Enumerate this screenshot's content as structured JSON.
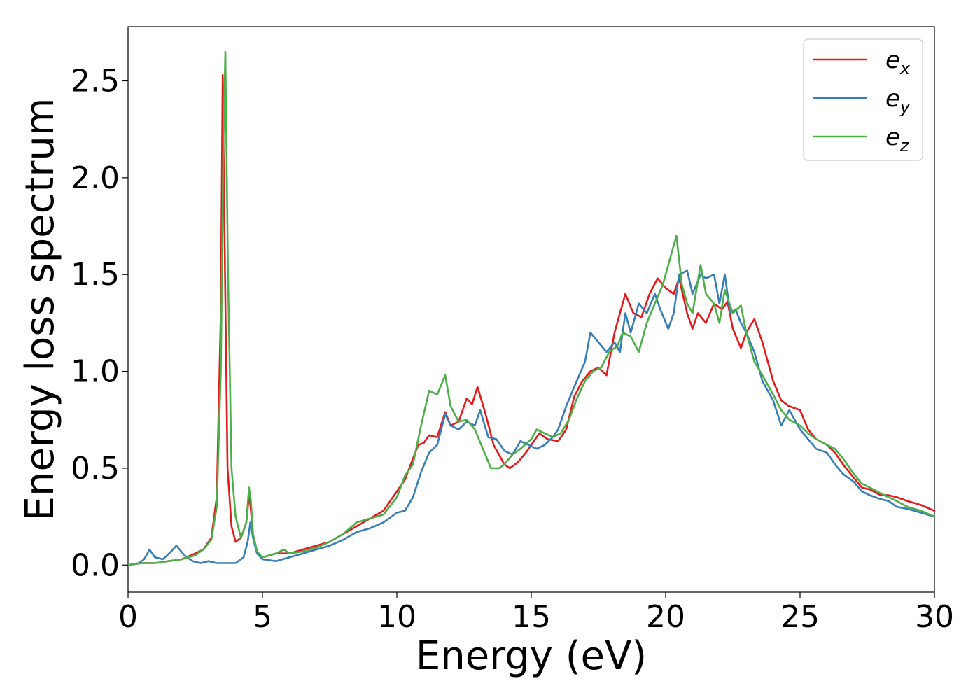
{
  "chart_data": {
    "type": "line",
    "xlabel": "Energy (eV)",
    "ylabel": "Energy loss spectrum",
    "xlim": [
      0,
      30
    ],
    "ylim": [
      -0.14,
      2.78
    ],
    "xticks": [
      0,
      5,
      10,
      15,
      20,
      25,
      30
    ],
    "xtick_labels": [
      "0",
      "5",
      "10",
      "15",
      "20",
      "25",
      "30"
    ],
    "yticks": [
      0.0,
      0.5,
      1.0,
      1.5,
      2.0,
      2.5
    ],
    "ytick_labels": [
      "0.0",
      "0.5",
      "1.0",
      "1.5",
      "2.0",
      "2.5"
    ],
    "grid": false,
    "legend_position": "top-right",
    "series": [
      {
        "name": "e",
        "subscript": "x",
        "color": "#e41a1c",
        "x": [
          0,
          0.5,
          1,
          1.5,
          2,
          2.5,
          2.8,
          3.1,
          3.3,
          3.45,
          3.52,
          3.6,
          3.7,
          3.85,
          4.0,
          4.2,
          4.4,
          4.5,
          4.56,
          4.65,
          4.8,
          5.0,
          5.5,
          6.0,
          6.5,
          7.0,
          7.5,
          8.0,
          8.5,
          9.0,
          9.5,
          10.0,
          10.3,
          10.6,
          10.8,
          11.0,
          11.2,
          11.5,
          11.8,
          12.0,
          12.3,
          12.6,
          12.8,
          13.0,
          13.3,
          13.6,
          14.0,
          14.2,
          14.5,
          14.8,
          15.0,
          15.3,
          15.6,
          16.0,
          16.3,
          16.6,
          16.9,
          17.2,
          17.5,
          17.8,
          18.1,
          18.3,
          18.5,
          18.8,
          19.1,
          19.4,
          19.7,
          20.0,
          20.3,
          20.5,
          20.8,
          21.0,
          21.2,
          21.5,
          21.8,
          22.1,
          22.3,
          22.5,
          22.8,
          23.0,
          23.3,
          23.6,
          24.0,
          24.3,
          24.6,
          25.0,
          25.3,
          25.6,
          26.0,
          26.3,
          26.6,
          27.0,
          27.3,
          27.6,
          28.0,
          28.3,
          28.6,
          29.0,
          29.5,
          30.0
        ],
        "values": [
          0,
          0.01,
          0.01,
          0.02,
          0.03,
          0.06,
          0.08,
          0.14,
          0.35,
          1.3,
          2.53,
          1.6,
          0.5,
          0.2,
          0.12,
          0.14,
          0.22,
          0.36,
          0.3,
          0.15,
          0.06,
          0.04,
          0.06,
          0.06,
          0.08,
          0.1,
          0.12,
          0.16,
          0.2,
          0.24,
          0.28,
          0.38,
          0.44,
          0.55,
          0.62,
          0.63,
          0.67,
          0.66,
          0.79,
          0.72,
          0.74,
          0.86,
          0.83,
          0.92,
          0.78,
          0.62,
          0.52,
          0.5,
          0.53,
          0.58,
          0.62,
          0.68,
          0.65,
          0.64,
          0.7,
          0.87,
          0.95,
          1.0,
          1.02,
          0.98,
          1.2,
          1.3,
          1.4,
          1.3,
          1.28,
          1.4,
          1.48,
          1.43,
          1.4,
          1.48,
          1.3,
          1.22,
          1.3,
          1.25,
          1.35,
          1.32,
          1.36,
          1.22,
          1.12,
          1.2,
          1.27,
          1.15,
          0.95,
          0.85,
          0.82,
          0.8,
          0.7,
          0.65,
          0.62,
          0.58,
          0.52,
          0.45,
          0.4,
          0.39,
          0.36,
          0.36,
          0.35,
          0.33,
          0.31,
          0.28
        ]
      },
      {
        "name": "e",
        "subscript": "y",
        "color": "#377eb8",
        "x": [
          0,
          0.4,
          0.6,
          0.8,
          1.0,
          1.3,
          1.6,
          1.8,
          2.1,
          2.4,
          2.7,
          3.0,
          3.3,
          3.6,
          4.0,
          4.3,
          4.45,
          4.55,
          4.65,
          4.8,
          5.0,
          5.5,
          6.0,
          6.5,
          7.0,
          7.5,
          8.0,
          8.5,
          9.0,
          9.5,
          10.0,
          10.3,
          10.6,
          10.9,
          11.2,
          11.5,
          11.8,
          12.0,
          12.3,
          12.6,
          12.9,
          13.1,
          13.4,
          13.7,
          14.0,
          14.3,
          14.6,
          14.9,
          15.2,
          15.5,
          15.8,
          16.0,
          16.3,
          16.6,
          17.0,
          17.2,
          17.5,
          17.8,
          18.1,
          18.3,
          18.5,
          18.7,
          19.0,
          19.3,
          19.6,
          19.8,
          20.1,
          20.3,
          20.5,
          20.8,
          21.0,
          21.3,
          21.5,
          21.8,
          22.0,
          22.2,
          22.4,
          22.6,
          22.8,
          23.0,
          23.3,
          23.6,
          24.0,
          24.3,
          24.6,
          25.0,
          25.3,
          25.6,
          26.0,
          26.3,
          26.6,
          27.0,
          27.3,
          27.6,
          28.0,
          28.3,
          28.6,
          29.0,
          29.5,
          30.0
        ],
        "values": [
          0,
          0.01,
          0.03,
          0.08,
          0.04,
          0.03,
          0.07,
          0.1,
          0.05,
          0.02,
          0.01,
          0.02,
          0.01,
          0.01,
          0.01,
          0.04,
          0.12,
          0.22,
          0.14,
          0.06,
          0.03,
          0.02,
          0.04,
          0.06,
          0.08,
          0.1,
          0.13,
          0.17,
          0.19,
          0.22,
          0.27,
          0.28,
          0.35,
          0.48,
          0.58,
          0.62,
          0.78,
          0.72,
          0.7,
          0.74,
          0.72,
          0.8,
          0.66,
          0.65,
          0.59,
          0.57,
          0.64,
          0.62,
          0.6,
          0.62,
          0.66,
          0.7,
          0.82,
          0.92,
          1.05,
          1.2,
          1.15,
          1.1,
          1.15,
          1.1,
          1.3,
          1.2,
          1.35,
          1.3,
          1.4,
          1.32,
          1.22,
          1.3,
          1.5,
          1.52,
          1.4,
          1.5,
          1.48,
          1.5,
          1.35,
          1.5,
          1.3,
          1.32,
          1.25,
          1.2,
          1.1,
          0.95,
          0.85,
          0.72,
          0.8,
          0.7,
          0.65,
          0.6,
          0.58,
          0.52,
          0.47,
          0.43,
          0.38,
          0.36,
          0.34,
          0.33,
          0.3,
          0.29,
          0.27,
          0.25
        ]
      },
      {
        "name": "e",
        "subscript": "z",
        "color": "#4daf4a",
        "x": [
          0,
          0.5,
          1,
          1.5,
          2,
          2.5,
          2.8,
          3.1,
          3.3,
          3.45,
          3.55,
          3.62,
          3.72,
          3.85,
          4.0,
          4.2,
          4.4,
          4.5,
          4.57,
          4.65,
          4.8,
          5.0,
          5.5,
          5.8,
          6.0,
          6.5,
          7.0,
          7.5,
          8.0,
          8.5,
          9.0,
          9.5,
          10.0,
          10.3,
          10.6,
          10.9,
          11.2,
          11.5,
          11.8,
          12.0,
          12.3,
          12.6,
          12.9,
          13.2,
          13.5,
          13.8,
          14.0,
          14.3,
          14.6,
          15.0,
          15.2,
          15.5,
          15.8,
          16.1,
          16.4,
          16.7,
          17.0,
          17.3,
          17.6,
          17.9,
          18.2,
          18.4,
          18.7,
          19.0,
          19.3,
          19.6,
          19.9,
          20.1,
          20.4,
          20.6,
          20.8,
          21.0,
          21.3,
          21.5,
          21.8,
          22.0,
          22.2,
          22.5,
          22.8,
          23.0,
          23.3,
          23.6,
          24.0,
          24.3,
          24.6,
          25.0,
          25.3,
          25.6,
          26.0,
          26.3,
          26.6,
          27.0,
          27.3,
          27.6,
          28.0,
          28.3,
          28.6,
          29.0,
          29.5,
          30.0
        ],
        "values": [
          0,
          0.01,
          0.01,
          0.02,
          0.03,
          0.05,
          0.08,
          0.13,
          0.3,
          1.0,
          2.2,
          2.65,
          1.5,
          0.5,
          0.25,
          0.14,
          0.22,
          0.4,
          0.33,
          0.16,
          0.07,
          0.04,
          0.06,
          0.08,
          0.06,
          0.07,
          0.09,
          0.12,
          0.16,
          0.22,
          0.24,
          0.26,
          0.35,
          0.46,
          0.52,
          0.72,
          0.9,
          0.88,
          0.98,
          0.82,
          0.74,
          0.75,
          0.7,
          0.6,
          0.5,
          0.5,
          0.52,
          0.57,
          0.6,
          0.65,
          0.7,
          0.68,
          0.66,
          0.68,
          0.75,
          0.86,
          0.95,
          1.0,
          1.02,
          1.1,
          1.13,
          1.2,
          1.18,
          1.1,
          1.25,
          1.35,
          1.45,
          1.55,
          1.7,
          1.45,
          1.35,
          1.3,
          1.55,
          1.4,
          1.35,
          1.25,
          1.42,
          1.3,
          1.34,
          1.2,
          1.05,
          0.98,
          0.88,
          0.8,
          0.75,
          0.72,
          0.68,
          0.65,
          0.62,
          0.6,
          0.55,
          0.47,
          0.42,
          0.4,
          0.37,
          0.35,
          0.33,
          0.3,
          0.28,
          0.25
        ]
      }
    ]
  }
}
